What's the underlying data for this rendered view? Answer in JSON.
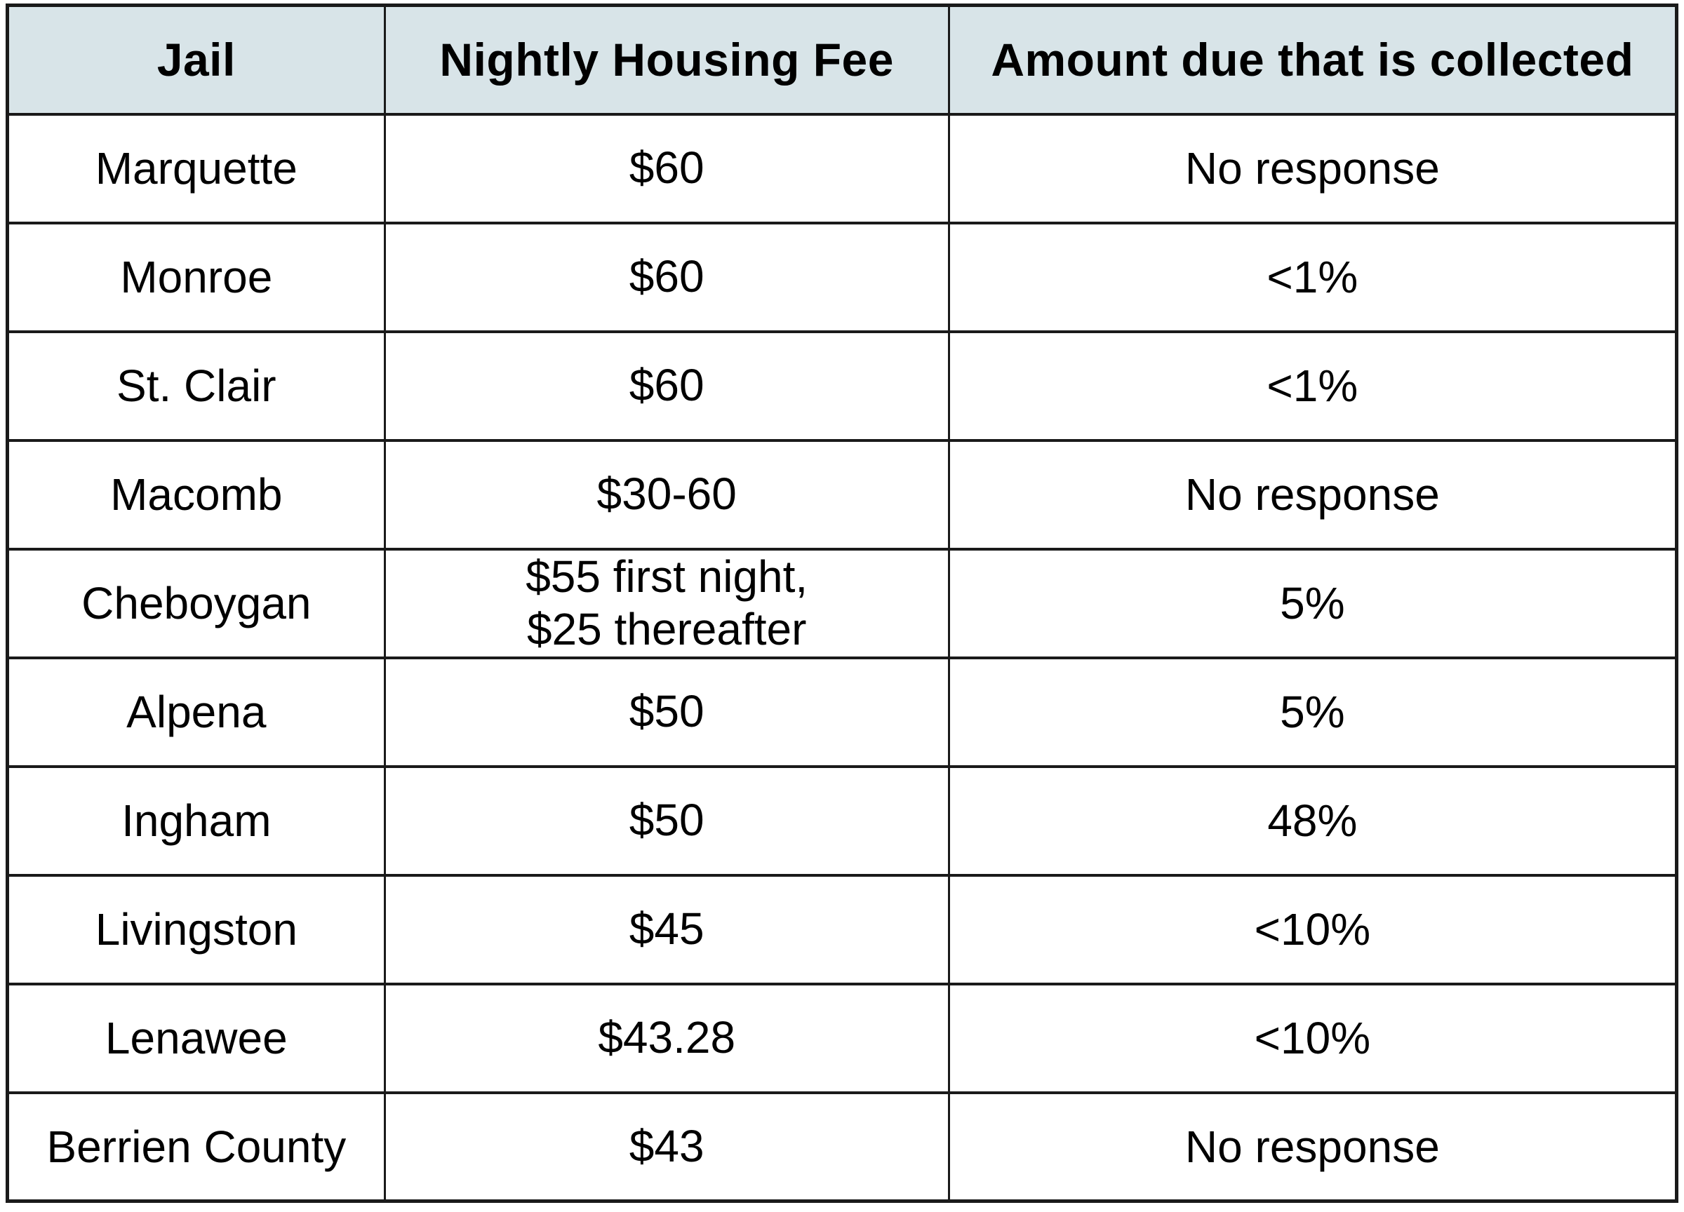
{
  "colors": {
    "header_bg": "#d8e4e8",
    "border": "#1a1a1a",
    "background": "#ffffff",
    "text": "#000000"
  },
  "chart_data": {
    "type": "table",
    "title": "",
    "columns": [
      "Jail",
      "Nightly Housing Fee",
      "Amount due that is collected"
    ],
    "rows": [
      [
        "Marquette",
        "$60",
        "No response"
      ],
      [
        "Monroe",
        "$60",
        "<1%"
      ],
      [
        "St. Clair",
        "$60",
        "<1%"
      ],
      [
        "Macomb",
        "$30-60",
        "No response"
      ],
      [
        "Cheboygan",
        "$55 first night,\n$25 thereafter",
        "5%"
      ],
      [
        "Alpena",
        "$50",
        "5%"
      ],
      [
        "Ingham",
        "$50",
        "48%"
      ],
      [
        "Livingston",
        "$45",
        "<10%"
      ],
      [
        "Lenawee",
        "$43.28",
        "<10%"
      ],
      [
        "Berrien County",
        "$43",
        "No response"
      ]
    ]
  }
}
